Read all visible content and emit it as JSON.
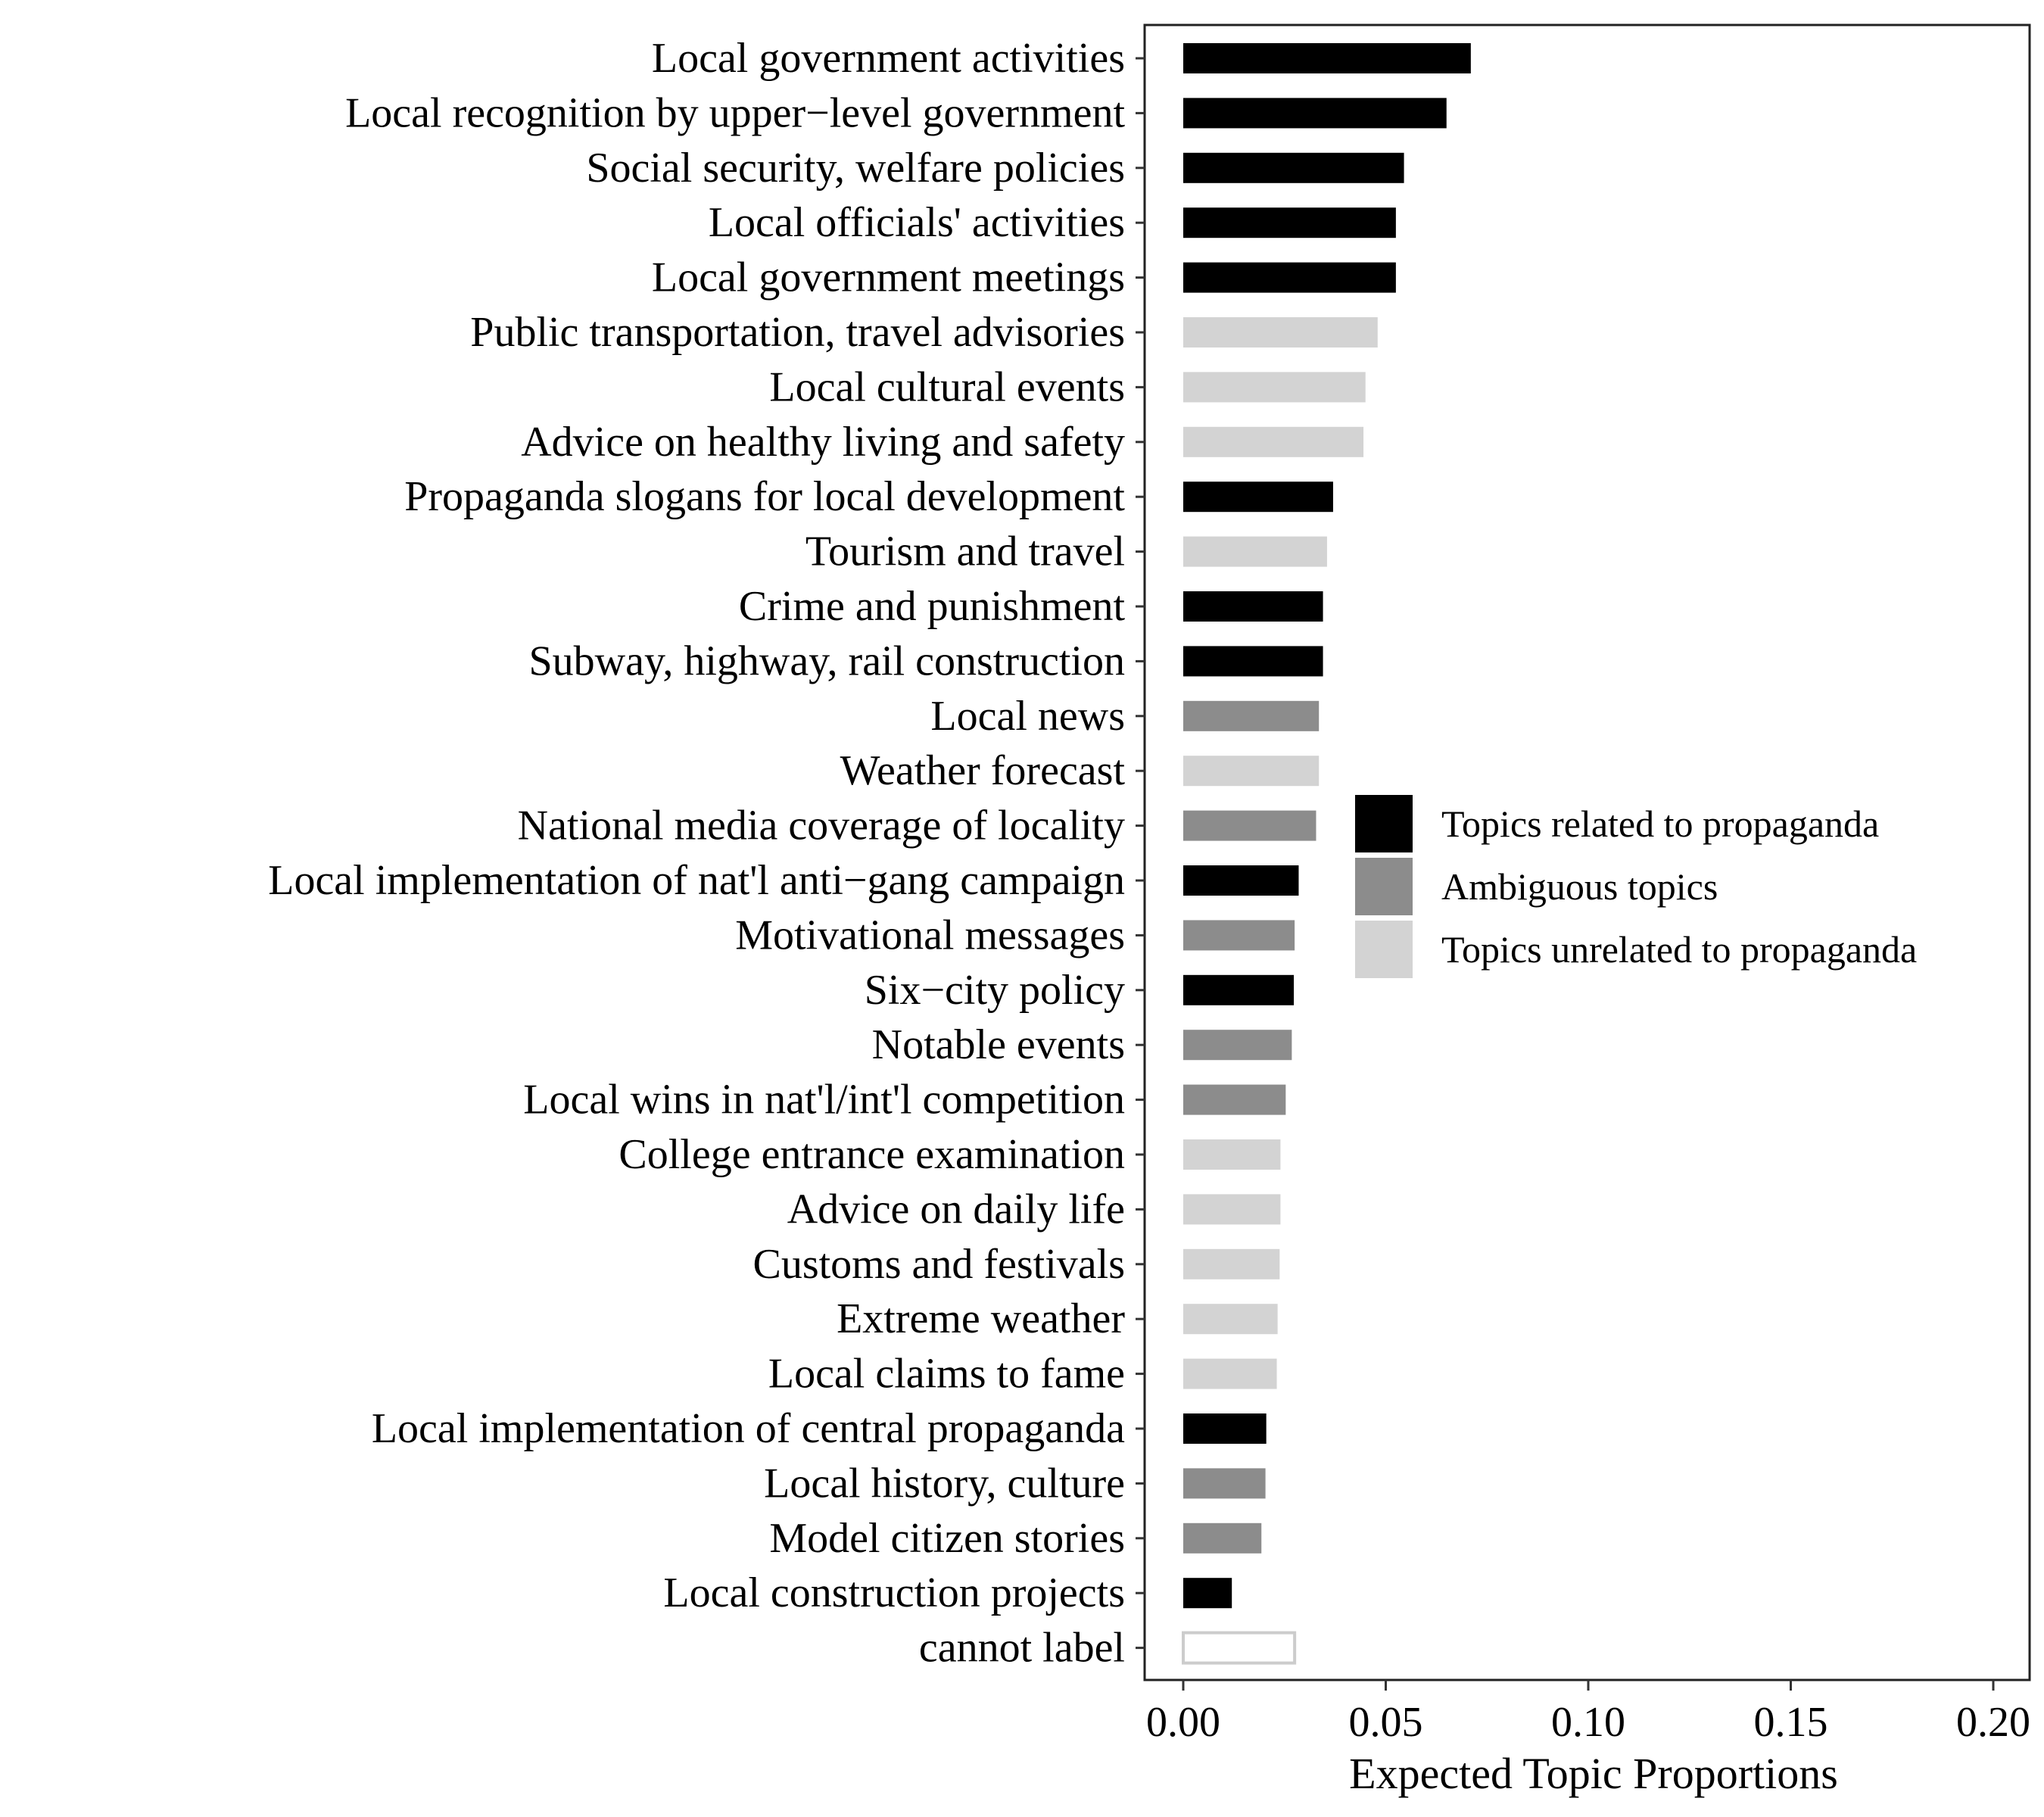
{
  "chart_data": {
    "type": "bar",
    "orientation": "horizontal",
    "title": "",
    "xlabel": "Expected Topic Proportions",
    "ylabel": "",
    "xlim": [
      0,
      0.2
    ],
    "xticks": [
      "0.00",
      "0.05",
      "0.10",
      "0.15",
      "0.20"
    ],
    "grid": false,
    "legend_position": "right",
    "groups": [
      {
        "key": "propaganda",
        "label": "Topics related to propaganda",
        "color": "#000000"
      },
      {
        "key": "ambiguous",
        "label": "Ambiguous topics",
        "color": "#8c8c8c"
      },
      {
        "key": "unrelated",
        "label": "Topics unrelated to propaganda",
        "color": "#d3d3d3"
      }
    ],
    "bars": [
      {
        "label": "Local government activities",
        "value": 0.071,
        "group": "propaganda"
      },
      {
        "label": "Local recognition by upper−level government",
        "value": 0.065,
        "group": "propaganda"
      },
      {
        "label": "Social security, welfare policies",
        "value": 0.0545,
        "group": "propaganda"
      },
      {
        "label": "Local officials' activities",
        "value": 0.0525,
        "group": "propaganda"
      },
      {
        "label": "Local government meetings",
        "value": 0.0525,
        "group": "propaganda"
      },
      {
        "label": "Public transportation, travel advisories",
        "value": 0.048,
        "group": "unrelated"
      },
      {
        "label": "Local cultural events",
        "value": 0.045,
        "group": "unrelated"
      },
      {
        "label": "Advice on healthy living and safety",
        "value": 0.0445,
        "group": "unrelated"
      },
      {
        "label": "Propaganda slogans for local development",
        "value": 0.037,
        "group": "propaganda"
      },
      {
        "label": "Tourism and travel",
        "value": 0.0355,
        "group": "unrelated"
      },
      {
        "label": "Crime and punishment",
        "value": 0.0345,
        "group": "propaganda"
      },
      {
        "label": "Subway, highway, rail construction",
        "value": 0.0345,
        "group": "propaganda"
      },
      {
        "label": "Local news",
        "value": 0.0335,
        "group": "ambiguous"
      },
      {
        "label": "Weather forecast",
        "value": 0.0335,
        "group": "unrelated"
      },
      {
        "label": "National media coverage of locality",
        "value": 0.0328,
        "group": "ambiguous"
      },
      {
        "label": "Local implementation of nat'l anti−gang campaign",
        "value": 0.0285,
        "group": "propaganda"
      },
      {
        "label": "Motivational messages",
        "value": 0.0275,
        "group": "ambiguous"
      },
      {
        "label": "Six−city policy",
        "value": 0.0273,
        "group": "propaganda"
      },
      {
        "label": "Notable events",
        "value": 0.0268,
        "group": "ambiguous"
      },
      {
        "label": "Local wins in nat'l/int'l competition",
        "value": 0.0253,
        "group": "ambiguous"
      },
      {
        "label": "College entrance examination",
        "value": 0.024,
        "group": "unrelated"
      },
      {
        "label": "Advice on daily life",
        "value": 0.024,
        "group": "unrelated"
      },
      {
        "label": "Customs and festivals",
        "value": 0.0238,
        "group": "unrelated"
      },
      {
        "label": "Extreme weather",
        "value": 0.0233,
        "group": "unrelated"
      },
      {
        "label": "Local claims to fame",
        "value": 0.0231,
        "group": "unrelated"
      },
      {
        "label": "Local implementation of central propaganda",
        "value": 0.0205,
        "group": "propaganda"
      },
      {
        "label": "Local history, culture",
        "value": 0.0203,
        "group": "ambiguous"
      },
      {
        "label": "Model citizen stories",
        "value": 0.0193,
        "group": "ambiguous"
      },
      {
        "label": "Local construction projects",
        "value": 0.012,
        "group": "propaganda"
      },
      {
        "label": "cannot label",
        "value": 0.0275,
        "group": "none"
      }
    ]
  }
}
